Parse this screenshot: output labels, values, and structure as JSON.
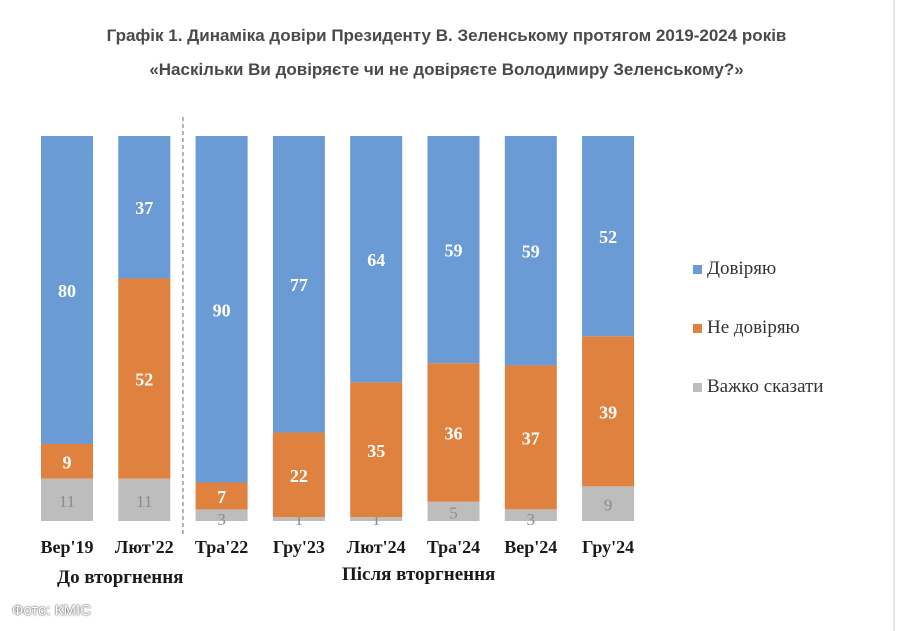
{
  "header": {
    "title": "Графік 1. Динаміка довіри Президенту В. Зеленському протягом 2019-2024 років",
    "subtitle": "«Наскільки Ви довіряєте чи не довіряєте Володимиру Зеленському?»"
  },
  "groups": {
    "before": "До вторгнення",
    "after": "Після вторгнення"
  },
  "credit": "Фото: КМІС",
  "colors": {
    "trust": "#6a9bd4",
    "distrust": "#e0823f",
    "hard": "#bdbdbd"
  },
  "chart_data": {
    "type": "bar",
    "stacked": true,
    "percent": true,
    "title": "Графік 1. Динаміка довіри Президенту В. Зеленському протягом 2019-2024 років",
    "subtitle": "«Наскільки Ви довіряєте чи не довіряєте Володимиру Зеленському?»",
    "categories": [
      "Вер'19",
      "Лют'22",
      "Тра'22",
      "Гру'23",
      "Лют'24",
      "Тра'24",
      "Вер'24",
      "Гру'24"
    ],
    "series": [
      {
        "name": "Довіряю",
        "values": [
          80,
          37,
          90,
          77,
          64,
          59,
          59,
          52
        ]
      },
      {
        "name": "Не довіряю",
        "values": [
          9,
          52,
          7,
          22,
          35,
          36,
          37,
          39
        ]
      },
      {
        "name": "Важко сказати",
        "values": [
          11,
          11,
          3,
          1,
          1,
          5,
          3,
          9
        ]
      }
    ],
    "ylim": [
      0,
      100
    ],
    "xlabel": "",
    "ylabel": "",
    "legend_position": "right",
    "divider_after_category": 1
  }
}
